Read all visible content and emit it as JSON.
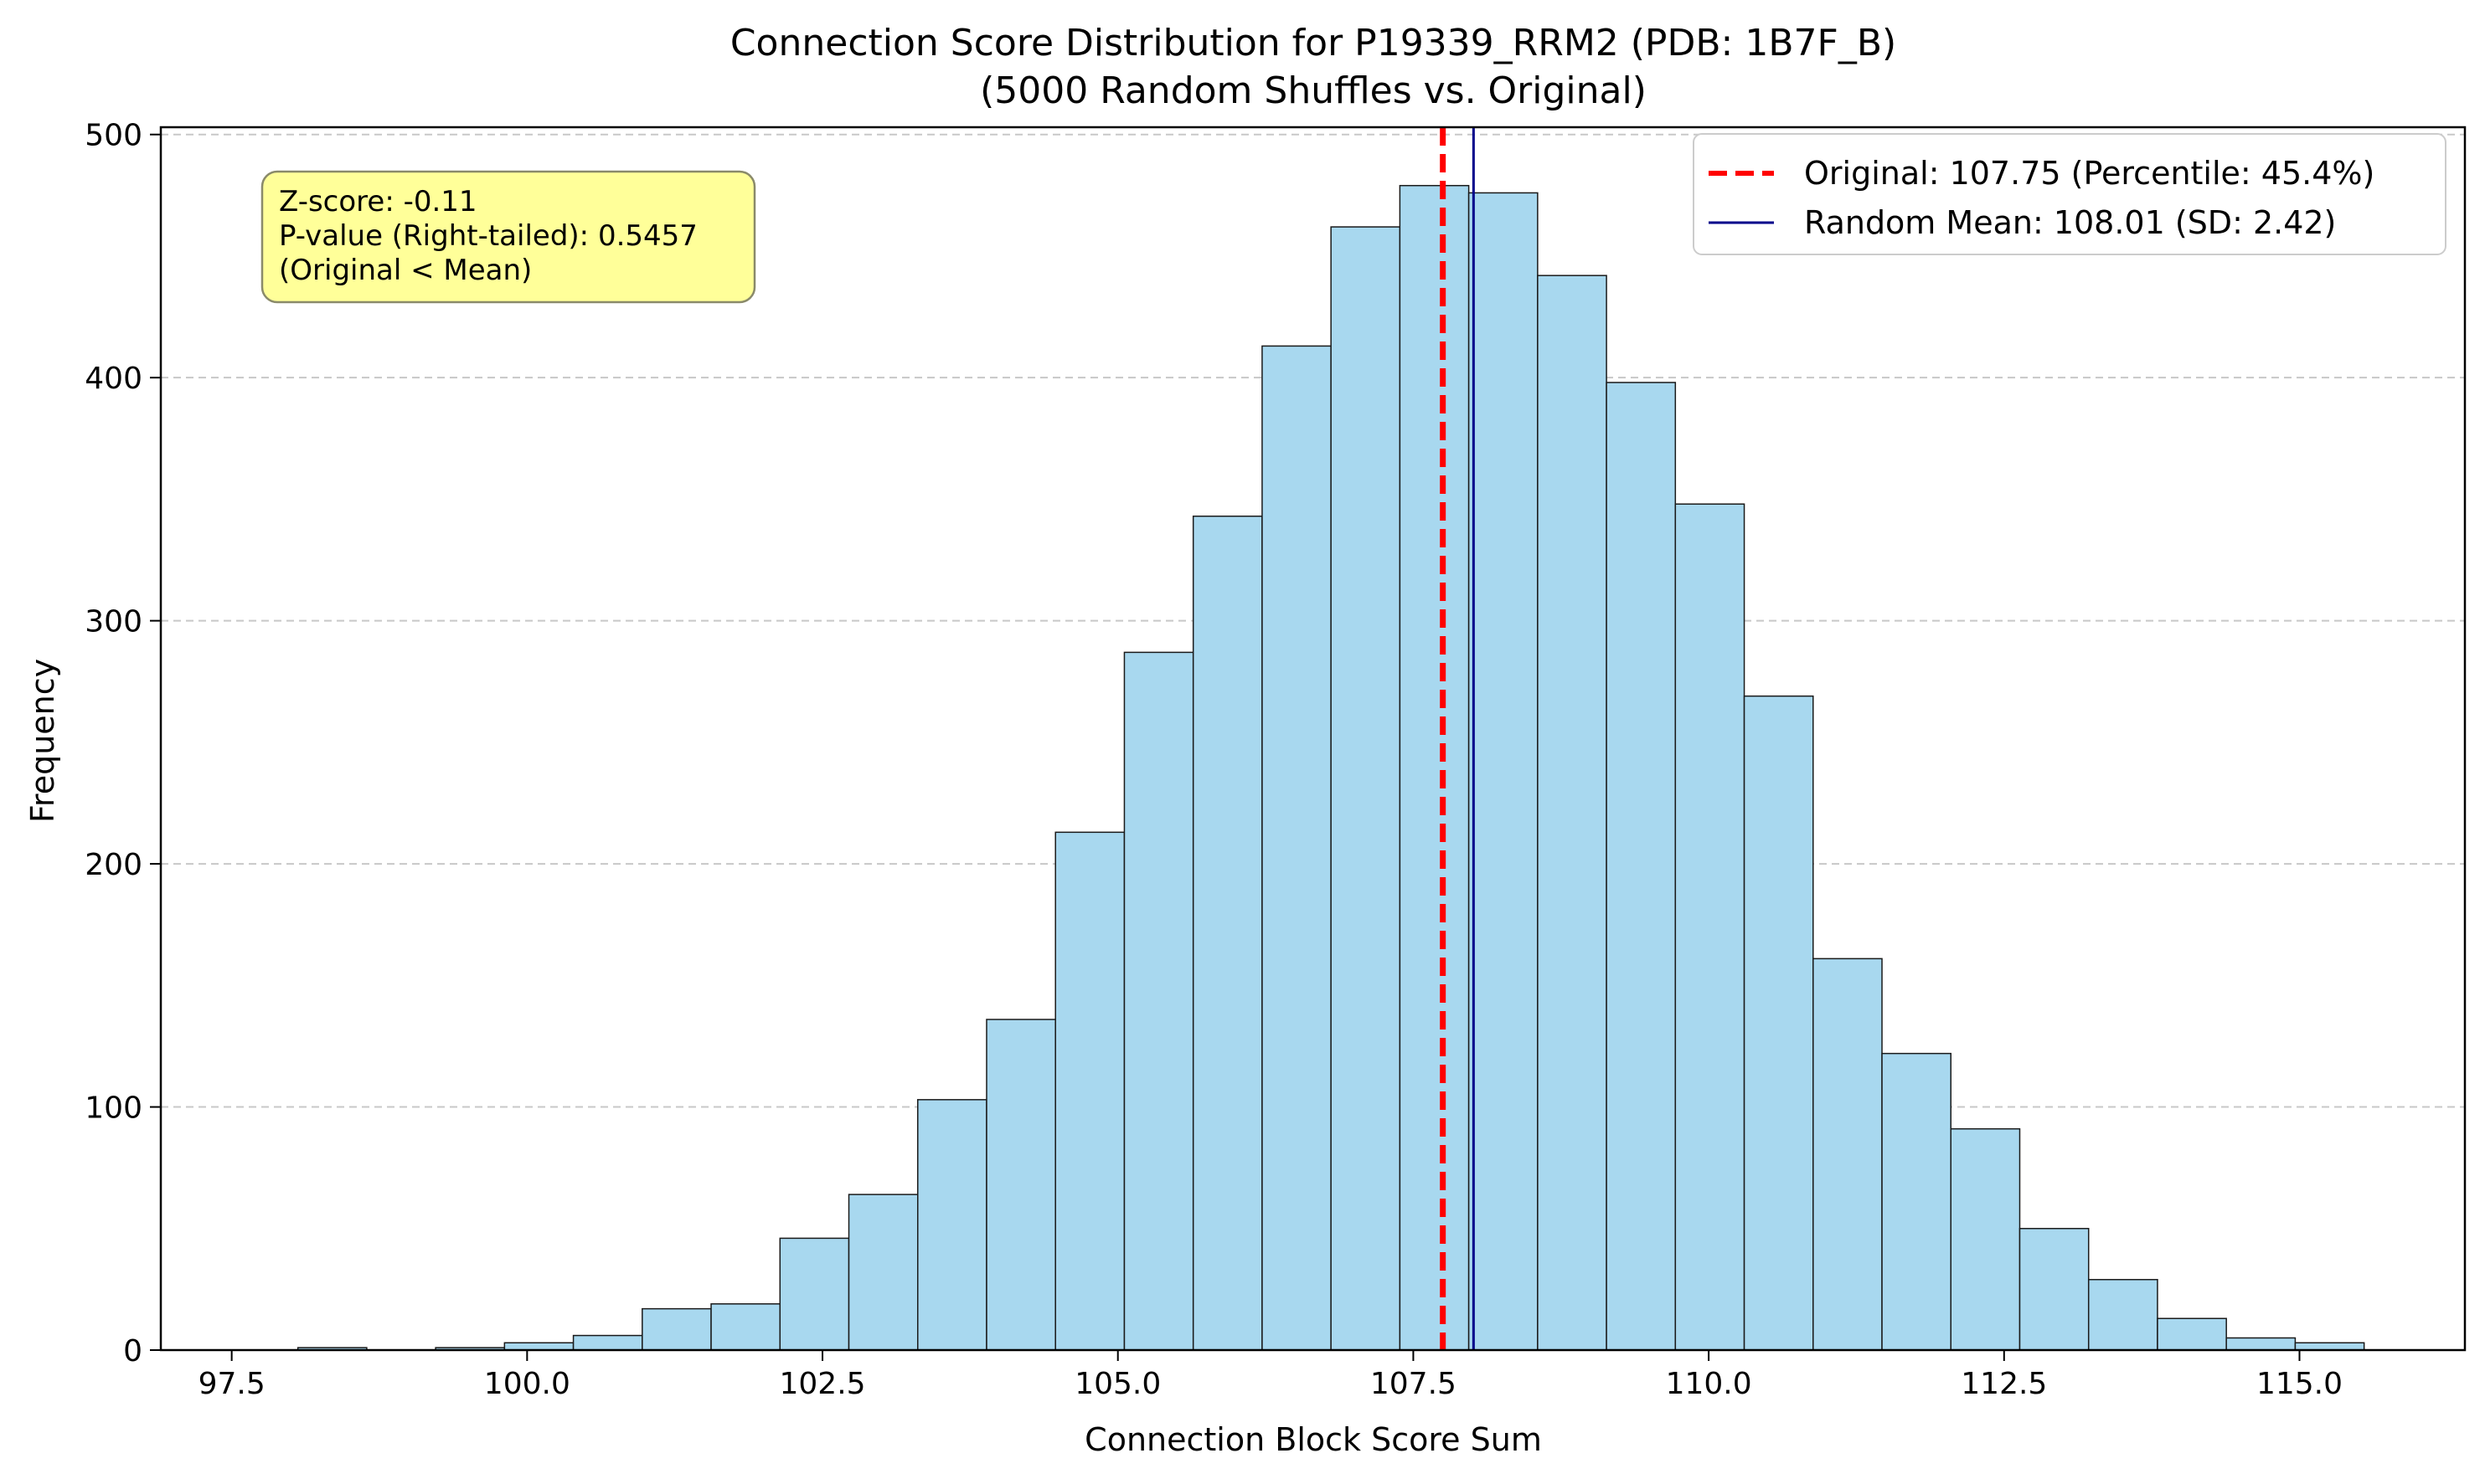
{
  "chart_data": {
    "type": "bar",
    "title": "Connection Score Distribution for P19339_RRM2 (PDB: 1B7F_B)",
    "subtitle": "(5000 Random Shuffles vs. Original)",
    "xlabel": "Connection Block Score Sum",
    "ylabel": "Frequency",
    "xlim": [
      96.9,
      116.4
    ],
    "ylim": [
      0,
      503
    ],
    "x_ticks": [
      97.5,
      100.0,
      102.5,
      105.0,
      107.5,
      110.0,
      112.5,
      115.0
    ],
    "x_tick_labels": [
      "97.5",
      "100.0",
      "102.5",
      "105.0",
      "107.5",
      "110.0",
      "112.5",
      "115.0"
    ],
    "y_ticks": [
      0,
      100,
      200,
      300,
      400,
      500
    ],
    "y_tick_labels": [
      "0",
      "100",
      "200",
      "300",
      "400",
      "500"
    ],
    "grid": "horizontal dashed",
    "bins": {
      "start": 98.06,
      "width": 0.5829,
      "values": [
        1,
        0,
        1,
        3,
        6,
        17,
        19,
        46,
        64,
        103,
        136,
        213,
        287,
        343,
        413,
        462,
        479,
        476,
        442,
        398,
        348,
        269,
        161,
        122,
        91,
        50,
        29,
        13,
        5,
        3
      ],
      "fill": "#a8d8ef",
      "edge": "#1a1a1a"
    },
    "reference_lines": [
      {
        "name": "Original: 107.75 (Percentile: 45.4%)",
        "x": 107.75,
        "color": "#ff0000",
        "style": "dashed"
      },
      {
        "name": "Random Mean: 108.01 (SD: 2.42)",
        "x": 108.01,
        "color": "#00008b",
        "style": "solid"
      }
    ],
    "legend": {
      "placement": "top-right",
      "entries": [
        "Original: 107.75 (Percentile: 45.4%)",
        "Random Mean: 108.01 (SD: 2.42)"
      ]
    },
    "annotation": {
      "lines": [
        "Z-score: -0.11",
        "P-value (Right-tailed): 0.5457",
        "(Original < Mean)"
      ],
      "background": "#ffff99",
      "placement": "top-left"
    }
  }
}
